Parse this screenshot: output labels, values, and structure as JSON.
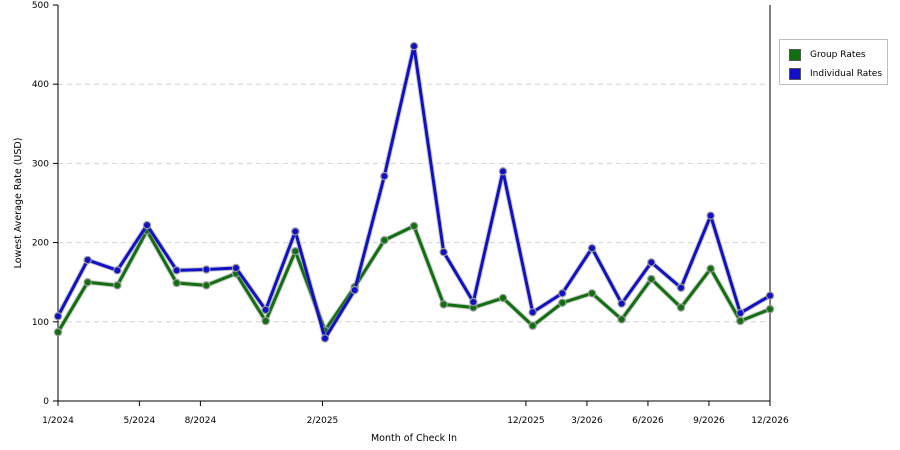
{
  "chart_data": {
    "type": "line",
    "title": "",
    "xlabel": "Month of Check In",
    "ylabel": "Lowest Average Rate (USD)",
    "ylim": [
      0,
      500
    ],
    "yticks": [
      0,
      100,
      200,
      300,
      400,
      500
    ],
    "x_start": "1/2024",
    "x_end": "12/2026",
    "x_tick_labels": [
      "1/2024",
      "5/2024",
      "8/2024",
      "2/2025",
      "12/2025",
      "3/2026",
      "6/2026",
      "9/2026",
      "12/2026"
    ],
    "grid": "horizontal dashed",
    "legend_position": "right",
    "series": [
      {
        "name": "Group Rates",
        "color": "#107010",
        "values": [
          87,
          150,
          146,
          215,
          149,
          146,
          161,
          101,
          189,
          89,
          144,
          203,
          221,
          122,
          118,
          130,
          95,
          124,
          136,
          103,
          154,
          118,
          167,
          101,
          116
        ]
      },
      {
        "name": "Individual Rates",
        "color": "#1010c8",
        "values": [
          107,
          178,
          165,
          222,
          165,
          166,
          168,
          115,
          214,
          79,
          140,
          284,
          448,
          188,
          125,
          290,
          112,
          136,
          193,
          123,
          175,
          143,
          234,
          111,
          133
        ]
      }
    ]
  }
}
